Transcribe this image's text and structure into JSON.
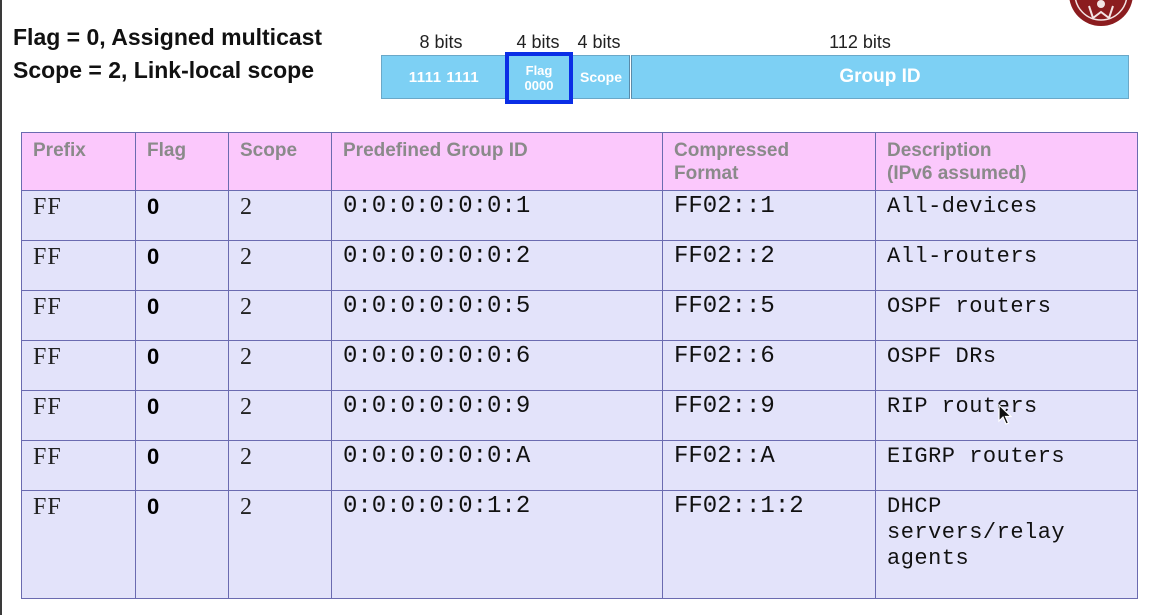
{
  "headings": {
    "line1": "Flag = 0, Assigned multicast",
    "line2": "Scope = 2, Link-local scope"
  },
  "diagram": {
    "bit_labels": [
      "8 bits",
      "4 bits",
      "4 bits",
      "112 bits"
    ],
    "prefix_field": "1111 1111",
    "flag_field": {
      "title": "Flag",
      "value": "0000"
    },
    "scope_field": "Scope",
    "group_field": "Group ID",
    "colors": {
      "field_fill": "#7dd0f4",
      "flag_highlight": "#0a2ee6"
    }
  },
  "table": {
    "headers": [
      "Prefix",
      "Flag",
      "Scope",
      "Predefined Group ID",
      "Compressed Format",
      "Description (IPv6 assumed)"
    ],
    "header_lines": {
      "compressed": [
        "Compressed",
        "Format"
      ],
      "description": [
        "Description",
        "(IPv6 assumed)"
      ]
    },
    "rows": [
      {
        "prefix": "FF",
        "flag": "0",
        "scope": "2",
        "group_id": "0:0:0:0:0:0:1",
        "compressed": "FF02::1",
        "description": "All-devices"
      },
      {
        "prefix": "FF",
        "flag": "0",
        "scope": "2",
        "group_id": "0:0:0:0:0:0:2",
        "compressed": "FF02::2",
        "description": "All-routers"
      },
      {
        "prefix": "FF",
        "flag": "0",
        "scope": "2",
        "group_id": "0:0:0:0:0:0:5",
        "compressed": "FF02::5",
        "description": "OSPF routers"
      },
      {
        "prefix": "FF",
        "flag": "0",
        "scope": "2",
        "group_id": "0:0:0:0:0:0:6",
        "compressed": "FF02::6",
        "description": "OSPF DRs"
      },
      {
        "prefix": "FF",
        "flag": "0",
        "scope": "2",
        "group_id": "0:0:0:0:0:0:9",
        "compressed": "FF02::9",
        "description": "RIP routers"
      },
      {
        "prefix": "FF",
        "flag": "0",
        "scope": "2",
        "group_id": "0:0:0:0:0:0:A",
        "compressed": "FF02::A",
        "description": "EIGRP routers"
      },
      {
        "prefix": "FF",
        "flag": "0",
        "scope": "2",
        "group_id": "0:0:0:0:0:1:2",
        "compressed": "FF02::1:2",
        "description_lines": [
          "DHCP",
          "servers/relay",
          "agents"
        ]
      }
    ],
    "colors": {
      "header_bg": "#fbc8fc",
      "row_bg": "#e3e3fa",
      "border": "#6b6bb0"
    }
  },
  "icons": {
    "logo": "university-seal-icon",
    "cursor": "mouse-pointer-icon"
  }
}
